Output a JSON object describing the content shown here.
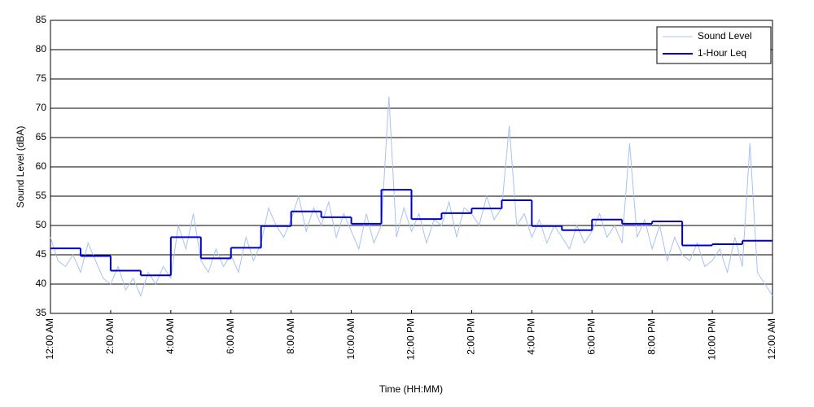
{
  "chart_data": {
    "type": "line",
    "x_label": "Time (HH:MM)",
    "y_label": "Sound Level (dBA)",
    "xlim": [
      0,
      24
    ],
    "ylim": [
      35,
      85
    ],
    "yticks": [
      35,
      40,
      45,
      50,
      55,
      60,
      65,
      70,
      75,
      80,
      85
    ],
    "xticks": [
      {
        "value": 0,
        "label": "12:00 AM"
      },
      {
        "value": 2,
        "label": "2:00 AM"
      },
      {
        "value": 4,
        "label": "4:00 AM"
      },
      {
        "value": 6,
        "label": "6:00 AM"
      },
      {
        "value": 8,
        "label": "8:00 AM"
      },
      {
        "value": 10,
        "label": "10:00 AM"
      },
      {
        "value": 12,
        "label": "12:00 PM"
      },
      {
        "value": 14,
        "label": "2:00 PM"
      },
      {
        "value": 16,
        "label": "4:00 PM"
      },
      {
        "value": 18,
        "label": "6:00 PM"
      },
      {
        "value": 20,
        "label": "8:00 PM"
      },
      {
        "value": 22,
        "label": "10:00 PM"
      },
      {
        "value": 24,
        "label": "12:00 AM"
      }
    ],
    "grid": true,
    "legend": "upper right",
    "series": [
      {
        "name": "Sound Level",
        "color": "#a7c2f2",
        "x": [
          0,
          0.25,
          0.5,
          0.75,
          1,
          1.25,
          1.5,
          1.75,
          2,
          2.25,
          2.5,
          2.75,
          3,
          3.25,
          3.5,
          3.75,
          4,
          4.25,
          4.5,
          4.75,
          5,
          5.25,
          5.5,
          5.75,
          6,
          6.25,
          6.5,
          6.75,
          7,
          7.25,
          7.5,
          7.75,
          8,
          8.25,
          8.5,
          8.75,
          9,
          9.25,
          9.5,
          9.75,
          10,
          10.25,
          10.5,
          10.75,
          11,
          11.25,
          11.5,
          11.75,
          12,
          12.25,
          12.5,
          12.75,
          13,
          13.25,
          13.5,
          13.75,
          14,
          14.25,
          14.5,
          14.75,
          15,
          15.25,
          15.5,
          15.75,
          16,
          16.25,
          16.5,
          16.75,
          17,
          17.25,
          17.5,
          17.75,
          18,
          18.25,
          18.5,
          18.75,
          19,
          19.25,
          19.5,
          19.75,
          20,
          20.25,
          20.5,
          20.75,
          21,
          21.25,
          21.5,
          21.75,
          22,
          22.25,
          22.5,
          22.75,
          23,
          23.25,
          23.5,
          23.75,
          24
        ],
        "values": [
          48,
          44,
          43,
          45,
          42,
          47,
          44,
          41,
          40,
          43,
          39,
          41,
          38,
          42,
          40,
          43,
          41,
          50,
          46,
          52,
          44,
          42,
          46,
          43,
          45,
          42,
          48,
          44,
          47,
          53,
          50,
          48,
          51,
          55,
          49,
          53,
          50,
          54,
          48,
          52,
          49,
          46,
          52,
          47,
          50,
          72,
          48,
          53,
          49,
          52,
          47,
          51,
          50,
          54,
          48,
          53,
          52,
          50,
          55,
          51,
          53,
          67,
          50,
          52,
          48,
          51,
          47,
          50,
          48,
          46,
          50,
          47,
          49,
          52,
          48,
          50,
          47,
          64,
          48,
          51,
          46,
          50,
          44,
          48,
          45,
          44,
          47,
          43,
          44,
          46,
          42,
          48,
          43,
          64,
          42,
          40,
          38
        ]
      },
      {
        "name": "1-Hour Leq",
        "color": "#0000cc",
        "bins": [
          0,
          1,
          2,
          3,
          4,
          5,
          6,
          7,
          8,
          9,
          10,
          11,
          12,
          13,
          14,
          15,
          16,
          17,
          18,
          19,
          20,
          21,
          22,
          23,
          24
        ],
        "values": [
          46.1,
          44.8,
          42.3,
          41.5,
          48.0,
          44.4,
          46.2,
          49.9,
          52.4,
          51.4,
          50.3,
          56.1,
          51.1,
          52.1,
          52.9,
          54.3,
          49.9,
          49.2,
          51.0,
          50.3,
          50.7,
          46.6,
          46.8,
          47.4
        ]
      }
    ]
  }
}
